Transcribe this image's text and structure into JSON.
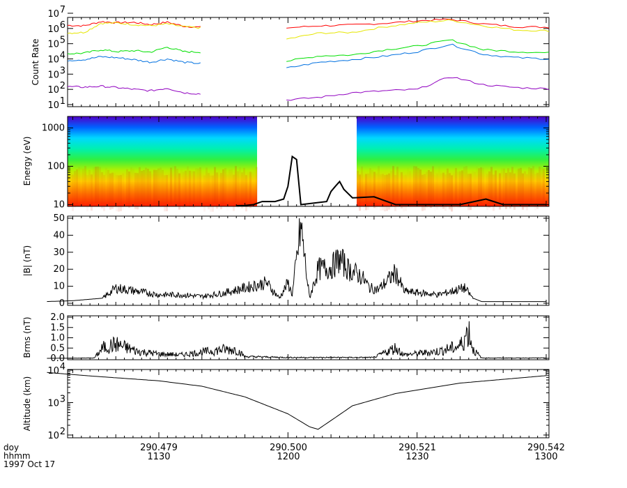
{
  "chart_data": [
    {
      "type": "line",
      "ylabel": "Count Rate",
      "yscale": "log",
      "ylim": [
        10,
        10000000
      ],
      "ytick_labels": [
        "10^1",
        "10^2",
        "10^3",
        "10^4",
        "10^5",
        "10^6",
        "10^7"
      ],
      "x_time_ticks": [
        "1130",
        "1200",
        "1230",
        "1300"
      ],
      "data_gap": [
        "1140",
        "1159"
      ],
      "series": [
        {
          "color": "#ff0000",
          "before_gap": [
            1600000,
            1500000,
            2800000,
            2400000,
            2500000,
            1800000,
            2600000,
            1400000,
            1200000
          ],
          "after_gap": [
            1100000,
            1500000,
            1700000,
            2200000,
            3200000,
            4000000,
            2000000,
            1300000,
            1200000
          ]
        },
        {
          "color": "#e6e600",
          "before_gap": [
            500000,
            550000,
            2200000,
            2300000,
            1800000,
            1500000,
            2000000,
            1300000,
            1100000
          ],
          "after_gap": [
            200000,
            500000,
            550000,
            1300000,
            2400000,
            3500000,
            1500000,
            800000,
            700000
          ]
        },
        {
          "color": "#00e000",
          "before_gap": [
            22000,
            24000,
            40000,
            30000,
            35000,
            28000,
            60000,
            30000,
            28000
          ],
          "after_gap": [
            7000,
            16000,
            18000,
            40000,
            70000,
            180000,
            40000,
            30000,
            25000
          ]
        },
        {
          "color": "#0070e0",
          "before_gap": [
            8000,
            9000,
            14000,
            12000,
            9000,
            6000,
            10000,
            6000,
            5000
          ],
          "after_gap": [
            2500,
            6000,
            9000,
            15000,
            30000,
            90000,
            20000,
            12000,
            10000
          ]
        },
        {
          "color": "#9000c0",
          "before_gap": [
            150,
            140,
            160,
            130,
            100,
            80,
            120,
            60,
            50
          ],
          "after_gap": [
            20,
            30,
            60,
            80,
            100,
            700,
            200,
            130,
            110
          ]
        }
      ]
    },
    {
      "type": "heatmap",
      "ylabel": "Energy (eV)",
      "yscale": "log",
      "ylim": [
        9,
        2000
      ],
      "ytick_labels": [
        "10",
        "100",
        "1000"
      ],
      "data_gap": [
        "1140",
        "1159"
      ],
      "colormap": "rainbow (red = high flux at low energy, blue/purple = low flux at high energy)",
      "overlay_line_energy_eV": [
        {
          "t": "1148",
          "e": 9
        },
        {
          "t": "1150",
          "e": 9.5
        },
        {
          "t": "1152",
          "e": 10
        },
        {
          "t": "1154",
          "e": 12
        },
        {
          "t": "1157",
          "e": 12
        },
        {
          "t": "1159",
          "e": 14
        },
        {
          "t": "1200",
          "e": 30
        },
        {
          "t": "1201",
          "e": 180
        },
        {
          "t": "1202",
          "e": 150
        },
        {
          "t": "1203",
          "e": 10
        },
        {
          "t": "1209",
          "e": 12
        },
        {
          "t": "1210",
          "e": 22
        },
        {
          "t": "1211",
          "e": 30
        },
        {
          "t": "1212",
          "e": 40
        },
        {
          "t": "1213",
          "e": 25
        },
        {
          "t": "1215",
          "e": 15
        },
        {
          "t": "1220",
          "e": 16
        },
        {
          "t": "1225",
          "e": 10
        },
        {
          "t": "1240",
          "e": 10
        },
        {
          "t": "1246",
          "e": 14
        },
        {
          "t": "1250",
          "e": 10
        },
        {
          "t": "1300",
          "e": 10
        }
      ]
    },
    {
      "type": "line",
      "ylabel": "|B| (nT)",
      "ylim": [
        0,
        50
      ],
      "ytick_labels": [
        "0",
        "10",
        "20",
        "30",
        "40",
        "50"
      ],
      "values": [
        {
          "t": "1104",
          "v": 1
        },
        {
          "t": "1110",
          "v": 1.5
        },
        {
          "t": "1117",
          "v": 3
        },
        {
          "t": "1120",
          "v": 9
        },
        {
          "t": "1125",
          "v": 7
        },
        {
          "t": "1130",
          "v": 5
        },
        {
          "t": "1135",
          "v": 5
        },
        {
          "t": "1140",
          "v": 4
        },
        {
          "t": "1145",
          "v": 6
        },
        {
          "t": "1150",
          "v": 9
        },
        {
          "t": "1155",
          "v": 12
        },
        {
          "t": "1158",
          "v": 3
        },
        {
          "t": "1200",
          "v": 12
        },
        {
          "t": "1201",
          "v": 5
        },
        {
          "t": "1203",
          "v": 45
        },
        {
          "t": "1205",
          "v": 3
        },
        {
          "t": "1207",
          "v": 20
        },
        {
          "t": "1210",
          "v": 21
        },
        {
          "t": "1212",
          "v": 26
        },
        {
          "t": "1214",
          "v": 20
        },
        {
          "t": "1217",
          "v": 16
        },
        {
          "t": "1219",
          "v": 9
        },
        {
          "t": "1221",
          "v": 8
        },
        {
          "t": "1225",
          "v": 18
        },
        {
          "t": "1227",
          "v": 7
        },
        {
          "t": "1235",
          "v": 5
        },
        {
          "t": "1241",
          "v": 9
        },
        {
          "t": "1243",
          "v": 3
        },
        {
          "t": "1245",
          "v": 1
        },
        {
          "t": "1300",
          "v": 1
        }
      ]
    },
    {
      "type": "line",
      "ylabel": "Brms (nT)",
      "ylim": [
        0,
        2.0
      ],
      "ytick_labels": [
        "0.0",
        "0.5",
        "1.0",
        "1.5",
        "2.0"
      ],
      "values": [
        {
          "t": "1104",
          "v": 0
        },
        {
          "t": "1115",
          "v": 0.02
        },
        {
          "t": "1117",
          "v": 0.6
        },
        {
          "t": "1120",
          "v": 0.8
        },
        {
          "t": "1125",
          "v": 0.4
        },
        {
          "t": "1130",
          "v": 0.25
        },
        {
          "t": "1135",
          "v": 0.2
        },
        {
          "t": "1140",
          "v": 0.35
        },
        {
          "t": "1145",
          "v": 0.5
        },
        {
          "t": "1148",
          "v": 0.5
        },
        {
          "t": "1150",
          "v": 0.1
        },
        {
          "t": "1200",
          "v": 0.05
        },
        {
          "t": "1220",
          "v": 0.05
        },
        {
          "t": "1225",
          "v": 0.6
        },
        {
          "t": "1227",
          "v": 0.2
        },
        {
          "t": "1235",
          "v": 0.4
        },
        {
          "t": "1240",
          "v": 0.7
        },
        {
          "t": "1242",
          "v": 1.6
        },
        {
          "t": "1243",
          "v": 0.5
        },
        {
          "t": "1245",
          "v": 0.02
        },
        {
          "t": "1300",
          "v": 0.02
        }
      ]
    },
    {
      "type": "line",
      "ylabel": "Altitude (km)",
      "yscale": "log",
      "ylim": [
        100,
        10000
      ],
      "ytick_labels": [
        "10^2",
        "10^3",
        "10^4"
      ],
      "values": [
        {
          "t": "1104",
          "v": 8500
        },
        {
          "t": "1115",
          "v": 6500
        },
        {
          "t": "1130",
          "v": 4700
        },
        {
          "t": "1140",
          "v": 3200
        },
        {
          "t": "1150",
          "v": 1500
        },
        {
          "t": "1200",
          "v": 450
        },
        {
          "t": "1205",
          "v": 180
        },
        {
          "t": "1207",
          "v": 150
        },
        {
          "t": "1210",
          "v": 280
        },
        {
          "t": "1215",
          "v": 800
        },
        {
          "t": "1225",
          "v": 1900
        },
        {
          "t": "1240",
          "v": 4000
        },
        {
          "t": "1300",
          "v": 6800
        }
      ]
    }
  ],
  "x_axis": {
    "row_labels": [
      "doy",
      "hhmm",
      "1997 Oct 17"
    ],
    "ticks": [
      {
        "doy": "290.479",
        "hhmm": "1130"
      },
      {
        "doy": "290.500",
        "hhmm": "1200"
      },
      {
        "doy": "290.521",
        "hhmm": "1230"
      },
      {
        "doy": "290.542",
        "hhmm": "1300"
      }
    ]
  }
}
